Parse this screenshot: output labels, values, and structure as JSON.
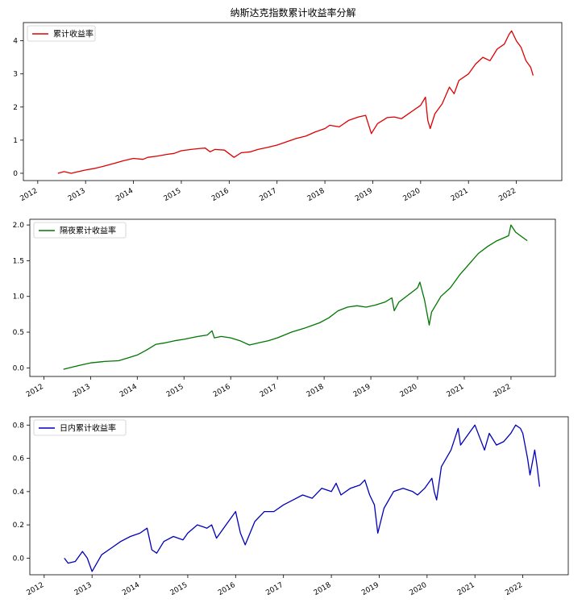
{
  "figure": {
    "title": "纳斯达克指数累计收益率分解"
  },
  "chart_data": [
    {
      "type": "line",
      "title": "",
      "xlabel": "",
      "ylabel": "",
      "xlim": [
        2011.7,
        2022.95
      ],
      "ylim": [
        -0.22,
        4.55
      ],
      "yticks": [
        0,
        1,
        2,
        3,
        4
      ],
      "ytick_labels": [
        "0",
        "1",
        "2",
        "3",
        "4"
      ],
      "xticks": [
        2012,
        2013,
        2014,
        2015,
        2016,
        2017,
        2018,
        2019,
        2020,
        2021,
        2022
      ],
      "xtick_labels": [
        "2012",
        "2013",
        "2014",
        "2015",
        "2016",
        "2017",
        "2018",
        "2019",
        "2020",
        "2021",
        "2022"
      ],
      "legend": {
        "location": "upper-left",
        "entries": [
          "累计收益率"
        ]
      },
      "series": [
        {
          "name": "累计收益率",
          "color": "#dd0000",
          "x": [
            2012.42,
            2012.55,
            2012.7,
            2012.85,
            2013.0,
            2013.2,
            2013.4,
            2013.6,
            2013.8,
            2014.0,
            2014.2,
            2014.3,
            2014.5,
            2014.7,
            2014.85,
            2015.0,
            2015.2,
            2015.4,
            2015.5,
            2015.6,
            2015.7,
            2015.9,
            2016.1,
            2016.25,
            2016.45,
            2016.6,
            2016.8,
            2017.0,
            2017.2,
            2017.4,
            2017.6,
            2017.8,
            2018.0,
            2018.1,
            2018.3,
            2018.5,
            2018.7,
            2018.85,
            2018.97,
            2019.1,
            2019.3,
            2019.45,
            2019.6,
            2019.8,
            2020.0,
            2020.1,
            2020.15,
            2020.2,
            2020.3,
            2020.45,
            2020.6,
            2020.7,
            2020.8,
            2021.0,
            2021.15,
            2021.3,
            2021.45,
            2021.6,
            2021.75,
            2021.85,
            2021.9,
            2022.0,
            2022.1,
            2022.2,
            2022.3,
            2022.35
          ],
          "values": [
            0.0,
            0.05,
            0.0,
            0.05,
            0.1,
            0.15,
            0.22,
            0.3,
            0.38,
            0.45,
            0.42,
            0.48,
            0.52,
            0.57,
            0.6,
            0.68,
            0.72,
            0.75,
            0.76,
            0.65,
            0.72,
            0.7,
            0.48,
            0.62,
            0.65,
            0.72,
            0.78,
            0.85,
            0.95,
            1.05,
            1.12,
            1.25,
            1.35,
            1.45,
            1.4,
            1.6,
            1.7,
            1.75,
            1.2,
            1.5,
            1.68,
            1.7,
            1.65,
            1.85,
            2.05,
            2.3,
            1.6,
            1.35,
            1.8,
            2.1,
            2.6,
            2.4,
            2.8,
            3.0,
            3.3,
            3.5,
            3.4,
            3.75,
            3.9,
            4.2,
            4.3,
            4.0,
            3.8,
            3.4,
            3.2,
            2.95
          ]
        }
      ]
    },
    {
      "type": "line",
      "title": "",
      "xlabel": "",
      "ylabel": "",
      "xlim": [
        2011.7,
        2022.95
      ],
      "ylim": [
        -0.12,
        2.08
      ],
      "yticks": [
        0.0,
        0.5,
        1.0,
        1.5,
        2.0
      ],
      "ytick_labels": [
        "0.0",
        "0.5",
        "1.0",
        "1.5",
        "2.0"
      ],
      "xticks": [
        2012,
        2013,
        2014,
        2015,
        2016,
        2017,
        2018,
        2019,
        2020,
        2021,
        2022
      ],
      "xtick_labels": [
        "2012",
        "2013",
        "2014",
        "2015",
        "2016",
        "2017",
        "2018",
        "2019",
        "2020",
        "2021",
        "2022"
      ],
      "legend": {
        "location": "upper-left",
        "entries": [
          "隔夜累计收益率"
        ]
      },
      "series": [
        {
          "name": "隔夜累计收益率",
          "color": "#007700",
          "x": [
            2012.42,
            2012.6,
            2012.8,
            2013.0,
            2013.3,
            2013.6,
            2013.8,
            2014.0,
            2014.2,
            2014.4,
            2014.6,
            2014.8,
            2015.0,
            2015.3,
            2015.5,
            2015.6,
            2015.65,
            2015.8,
            2016.0,
            2016.2,
            2016.4,
            2016.6,
            2016.8,
            2017.0,
            2017.3,
            2017.6,
            2017.9,
            2018.1,
            2018.3,
            2018.5,
            2018.7,
            2018.9,
            2019.1,
            2019.3,
            2019.45,
            2019.5,
            2019.6,
            2019.8,
            2020.0,
            2020.05,
            2020.15,
            2020.25,
            2020.3,
            2020.5,
            2020.7,
            2020.9,
            2021.1,
            2021.3,
            2021.5,
            2021.7,
            2021.85,
            2021.95,
            2022.0,
            2022.1,
            2022.2,
            2022.35
          ],
          "values": [
            -0.02,
            0.01,
            0.04,
            0.07,
            0.09,
            0.1,
            0.14,
            0.18,
            0.25,
            0.33,
            0.35,
            0.38,
            0.4,
            0.44,
            0.46,
            0.52,
            0.42,
            0.44,
            0.42,
            0.38,
            0.32,
            0.35,
            0.38,
            0.42,
            0.5,
            0.56,
            0.63,
            0.7,
            0.8,
            0.85,
            0.87,
            0.85,
            0.88,
            0.92,
            0.98,
            0.8,
            0.92,
            1.02,
            1.12,
            1.2,
            0.95,
            0.6,
            0.78,
            1.0,
            1.12,
            1.3,
            1.45,
            1.6,
            1.7,
            1.78,
            1.82,
            1.85,
            2.0,
            1.9,
            1.85,
            1.78
          ]
        }
      ]
    },
    {
      "type": "line",
      "title": "",
      "xlabel": "",
      "ylabel": "",
      "xlim": [
        2011.7,
        2022.95
      ],
      "ylim": [
        -0.1,
        0.85
      ],
      "yticks": [
        0.0,
        0.2,
        0.4,
        0.6,
        0.8
      ],
      "ytick_labels": [
        "0.0",
        "0.2",
        "0.4",
        "0.6",
        "0.8"
      ],
      "xticks": [
        2012,
        2013,
        2014,
        2015,
        2016,
        2017,
        2018,
        2019,
        2020,
        2021,
        2022
      ],
      "xtick_labels": [
        "2012",
        "2013",
        "2014",
        "2015",
        "2016",
        "2017",
        "2018",
        "2019",
        "2020",
        "2021",
        "2022"
      ],
      "legend": {
        "location": "upper-left",
        "entries": [
          "日内累计收益率"
        ]
      },
      "series": [
        {
          "name": "日内累计收益率",
          "color": "#0000bb",
          "x": [
            2012.42,
            2012.5,
            2012.65,
            2012.8,
            2012.9,
            2013.0,
            2013.2,
            2013.4,
            2013.6,
            2013.8,
            2014.0,
            2014.15,
            2014.25,
            2014.35,
            2014.5,
            2014.7,
            2014.9,
            2015.0,
            2015.2,
            2015.4,
            2015.5,
            2015.6,
            2015.8,
            2016.0,
            2016.1,
            2016.2,
            2016.4,
            2016.6,
            2016.8,
            2017.0,
            2017.2,
            2017.4,
            2017.6,
            2017.8,
            2018.0,
            2018.1,
            2018.2,
            2018.4,
            2018.6,
            2018.7,
            2018.8,
            2018.9,
            2018.97,
            2019.1,
            2019.3,
            2019.5,
            2019.7,
            2019.8,
            2019.95,
            2020.1,
            2020.15,
            2020.2,
            2020.3,
            2020.5,
            2020.65,
            2020.7,
            2020.8,
            2021.0,
            2021.2,
            2021.3,
            2021.45,
            2021.6,
            2021.75,
            2021.85,
            2021.95,
            2022.0,
            2022.1,
            2022.15,
            2022.25,
            2022.3,
            2022.35
          ],
          "values": [
            0.0,
            -0.03,
            -0.02,
            0.04,
            0.0,
            -0.08,
            0.02,
            0.06,
            0.1,
            0.13,
            0.15,
            0.18,
            0.05,
            0.03,
            0.1,
            0.13,
            0.11,
            0.15,
            0.2,
            0.18,
            0.2,
            0.12,
            0.2,
            0.28,
            0.15,
            0.08,
            0.22,
            0.28,
            0.28,
            0.32,
            0.35,
            0.38,
            0.36,
            0.42,
            0.4,
            0.45,
            0.38,
            0.42,
            0.44,
            0.47,
            0.38,
            0.32,
            0.15,
            0.3,
            0.4,
            0.42,
            0.4,
            0.38,
            0.42,
            0.48,
            0.4,
            0.35,
            0.55,
            0.65,
            0.78,
            0.68,
            0.72,
            0.8,
            0.65,
            0.75,
            0.68,
            0.7,
            0.75,
            0.8,
            0.78,
            0.75,
            0.6,
            0.5,
            0.65,
            0.55,
            0.43
          ]
        }
      ]
    }
  ]
}
